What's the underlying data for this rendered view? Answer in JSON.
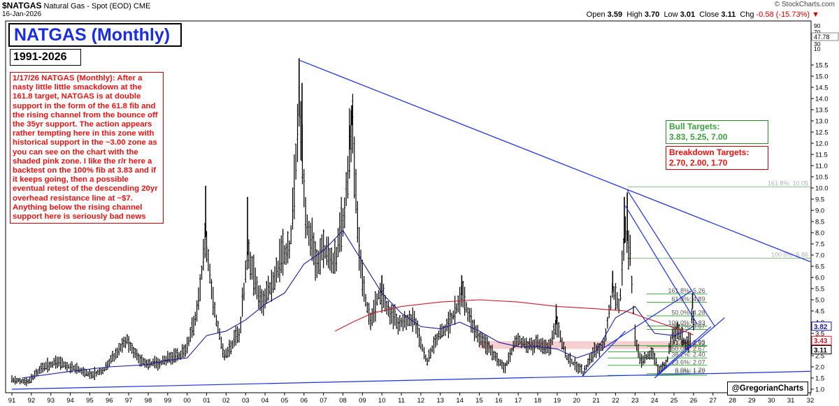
{
  "header": {
    "symbol": "$NATGAS",
    "description": "Natural Gas - Spot (EOD)",
    "exchange": "CME",
    "date": "16-Jan-2026",
    "brand": "© StockCharts.com",
    "open_label": "Open",
    "open": "3.59",
    "high_label": "High",
    "high": "3.70",
    "low_label": "Low",
    "low": "3.01",
    "close_label": "Close",
    "close": "3.11",
    "chg_label": "Chg",
    "chg": "-0.58 (-15.73%)"
  },
  "title": "NATGAS (Monthly)",
  "range": "1991-2026",
  "commentary": "1/17/26 NATGAS (Monthly): After a nasty little little smackdown at the 161.8 target, NATGAS is at double support in the form of the 61.8 fib and the rising channel from the bounce off the 35yr support. The action appears rather tempting here in this zone with historical support in the ~3.00 zone as you can see on the chart with the shaded pink zone. I like the r/r here a backtest on the 100% fib at 3.83 and if it keeps going, then a possible eventual retest of the descending 20yr overhead resistance line at ~$7. Anything below the rising channel support here is seriously bad news",
  "bull": {
    "title": "Bull Targets:",
    "values": "3.83, 5.25, 7.00"
  },
  "bear": {
    "title": "Breakdown Targets:",
    "values": "2.70, 2.00, 1.70"
  },
  "credit": "@GregorianCharts",
  "colors": {
    "price": "#000000",
    "ma_short": "#1a1aa0",
    "ma_long": "#cc1a2a",
    "trendline": "#1a2ee0",
    "fib_upper": "#88bb88",
    "fib_lower": "#44aa44",
    "support_zone": "#f4c8c8"
  },
  "chart_data": {
    "type": "bar",
    "title": "NATGAS (Monthly)",
    "xlabel": "",
    "ylabel": "",
    "xlim": [
      1991,
      2032
    ],
    "ylim": [
      1.0,
      16.0
    ],
    "x_tick_labels": [
      "91",
      "92",
      "93",
      "94",
      "95",
      "96",
      "97",
      "98",
      "99",
      "00",
      "01",
      "02",
      "03",
      "04",
      "05",
      "06",
      "07",
      "08",
      "09",
      "10",
      "11",
      "12",
      "13",
      "14",
      "15",
      "16",
      "17",
      "18",
      "19",
      "20",
      "21",
      "22",
      "23",
      "24",
      "25",
      "26",
      "27",
      "28",
      "29",
      "30",
      "31",
      "32"
    ],
    "y_ticks": [
      1.0,
      1.5,
      2.0,
      2.5,
      3.0,
      3.5,
      4.0,
      4.5,
      5.0,
      5.5,
      6.0,
      6.5,
      7.0,
      7.5,
      8.0,
      8.5,
      9.0,
      9.5,
      10.0,
      10.5,
      11.0,
      11.5,
      12.0,
      12.5,
      13.0,
      13.5,
      14.0,
      14.5,
      15.0,
      15.5
    ],
    "volume_axis_labels": [
      "90",
      "70",
      "50",
      "30",
      "10"
    ],
    "volume_value": "47.78",
    "last_value_labels": [
      {
        "value": "3.82",
        "color": "#1a1aa0"
      },
      {
        "value": "3.43",
        "color": "#cc1a2a"
      },
      {
        "value": "3.11",
        "color": "#000000"
      }
    ],
    "price_anchors": [
      [
        1991.0,
        1.4
      ],
      [
        1991.8,
        1.3
      ],
      [
        1992.5,
        1.9
      ],
      [
        1993.3,
        2.2
      ],
      [
        1994.2,
        1.9
      ],
      [
        1995.1,
        1.6
      ],
      [
        1995.8,
        1.9
      ],
      [
        1996.9,
        3.2
      ],
      [
        1997.6,
        2.2
      ],
      [
        1998.5,
        2.1
      ],
      [
        1999.3,
        2.4
      ],
      [
        1999.9,
        2.6
      ],
      [
        2000.5,
        4.3
      ],
      [
        2000.95,
        7.8
      ],
      [
        2001.4,
        4.5
      ],
      [
        2001.9,
        2.4
      ],
      [
        2002.7,
        3.5
      ],
      [
        2003.1,
        7.0
      ],
      [
        2003.8,
        4.7
      ],
      [
        2004.4,
        5.8
      ],
      [
        2004.9,
        6.8
      ],
      [
        2005.3,
        7.4
      ],
      [
        2005.75,
        13.2
      ],
      [
        2006.1,
        8.5
      ],
      [
        2006.6,
        6.5
      ],
      [
        2007.0,
        7.2
      ],
      [
        2007.6,
        6.6
      ],
      [
        2008.1,
        9.0
      ],
      [
        2008.45,
        12.8
      ],
      [
        2008.9,
        6.4
      ],
      [
        2009.4,
        3.8
      ],
      [
        2009.9,
        5.4
      ],
      [
        2010.4,
        4.3
      ],
      [
        2010.9,
        3.9
      ],
      [
        2011.6,
        4.2
      ],
      [
        2012.3,
        2.2
      ],
      [
        2012.9,
        3.4
      ],
      [
        2013.5,
        3.9
      ],
      [
        2014.1,
        5.2
      ],
      [
        2014.5,
        4.2
      ],
      [
        2014.9,
        3.3
      ],
      [
        2015.5,
        2.8
      ],
      [
        2015.9,
        2.3
      ],
      [
        2016.3,
        1.9
      ],
      [
        2016.9,
        3.2
      ],
      [
        2017.5,
        2.9
      ],
      [
        2018.0,
        3.0
      ],
      [
        2018.6,
        2.8
      ],
      [
        2018.95,
        3.9
      ],
      [
        2019.5,
        2.4
      ],
      [
        2020.0,
        2.0
      ],
      [
        2020.35,
        1.7
      ],
      [
        2020.9,
        2.7
      ],
      [
        2021.4,
        2.9
      ],
      [
        2021.85,
        5.4
      ],
      [
        2022.2,
        4.6
      ],
      [
        2022.5,
        8.1
      ],
      [
        2022.75,
        6.9
      ],
      [
        2023.0,
        3.3
      ],
      [
        2023.3,
        2.2
      ],
      [
        2023.9,
        2.7
      ],
      [
        2024.2,
        1.8
      ],
      [
        2024.6,
        2.1
      ],
      [
        2024.95,
        3.5
      ],
      [
        2025.3,
        3.4
      ],
      [
        2025.6,
        3.0
      ],
      [
        2025.85,
        3.1
      ],
      [
        2025.95,
        4.6
      ],
      [
        2026.05,
        3.11
      ]
    ],
    "price_spikes": [
      [
        2000.95,
        10.1
      ],
      [
        2003.1,
        9.6
      ],
      [
        2005.75,
        15.8
      ],
      [
        2005.9,
        14.7
      ],
      [
        2008.45,
        13.7
      ],
      [
        2008.35,
        12.8
      ],
      [
        2010.0,
        6.1
      ],
      [
        2014.1,
        6.1
      ],
      [
        2018.95,
        4.8
      ],
      [
        2021.85,
        6.3
      ],
      [
        2022.45,
        9.6
      ],
      [
        2022.6,
        9.8
      ],
      [
        2025.95,
        5.3
      ]
    ],
    "ma_short_series": [
      [
        1991.5,
        1.5
      ],
      [
        1994,
        1.8
      ],
      [
        1996,
        2.0
      ],
      [
        1998,
        2.1
      ],
      [
        1999,
        2.3
      ],
      [
        2000,
        2.4
      ],
      [
        2001,
        3.4
      ],
      [
        2002,
        3.6
      ],
      [
        2003,
        4.1
      ],
      [
        2004,
        4.8
      ],
      [
        2005,
        5.3
      ],
      [
        2006,
        6.6
      ],
      [
        2007,
        7.2
      ],
      [
        2008,
        8.1
      ],
      [
        2009,
        6.7
      ],
      [
        2010,
        5.3
      ],
      [
        2011,
        4.4
      ],
      [
        2012,
        3.8
      ],
      [
        2013,
        3.7
      ],
      [
        2014,
        4.0
      ],
      [
        2015,
        3.6
      ],
      [
        2016,
        3.1
      ],
      [
        2017,
        2.9
      ],
      [
        2018,
        2.9
      ],
      [
        2019,
        2.8
      ],
      [
        2020,
        2.4
      ],
      [
        2021,
        2.7
      ],
      [
        2022,
        4.2
      ],
      [
        2023,
        4.7
      ],
      [
        2024,
        3.5
      ],
      [
        2025,
        3.4
      ],
      [
        2025.6,
        3.6
      ],
      [
        2026.0,
        3.82
      ]
    ],
    "ma_long_series": [
      [
        2007.6,
        3.6
      ],
      [
        2008.5,
        4.0
      ],
      [
        2009.5,
        4.4
      ],
      [
        2011,
        4.7
      ],
      [
        2013,
        4.9
      ],
      [
        2015,
        5.0
      ],
      [
        2017,
        4.9
      ],
      [
        2019,
        4.7
      ],
      [
        2021,
        4.6
      ],
      [
        2022.5,
        4.5
      ],
      [
        2023.5,
        4.2
      ],
      [
        2024.5,
        3.9
      ],
      [
        2025.5,
        3.6
      ],
      [
        2026.0,
        3.43
      ]
    ],
    "support_zone": {
      "x_start": 2015.0,
      "x_end": 2026.2,
      "y_low": 2.8,
      "y_high": 3.15
    },
    "trendlines": [
      {
        "name": "descending-20yr-resistance",
        "x1": 2005.8,
        "y1": 15.7,
        "x2": 2032.0,
        "y2": 6.7
      },
      {
        "name": "35yr-support",
        "x1": 1991.0,
        "y1": 1.0,
        "x2": 2032.0,
        "y2": 1.8
      },
      {
        "name": "channel-lower-1",
        "x1": 2020.3,
        "y1": 1.6,
        "x2": 2022.5,
        "y2": 3.6
      },
      {
        "name": "channel-lower-2",
        "x1": 2024.0,
        "y1": 1.5,
        "x2": 2027.6,
        "y2": 4.2
      },
      {
        "name": "channel-upper",
        "x1": 2021.3,
        "y1": 2.8,
        "x2": 2025.9,
        "y2": 5.4
      },
      {
        "name": "wedge-upper",
        "x1": 2022.6,
        "y1": 9.9,
        "x2": 2027.1,
        "y2": 3.8
      },
      {
        "name": "wedge-lower",
        "x1": 2022.5,
        "y1": 9.2,
        "x2": 2026.2,
        "y2": 3.9
      },
      {
        "name": "inner-rising",
        "x1": 2024.2,
        "y1": 1.7,
        "x2": 2026.9,
        "y2": 3.8
      }
    ],
    "fib_levels_upper": [
      {
        "label": "161.8%: 10.05",
        "value": 10.05,
        "x_start": 2022.6
      },
      {
        "label": "100.0%: 6.86",
        "value": 6.86,
        "x_start": 2022.6
      }
    ],
    "fib_levels_lower": [
      {
        "label": "161.8%: 5.26",
        "value": 5.26,
        "x_start": 2023.6
      },
      {
        "label": "61.8%: 4.89",
        "value": 4.89,
        "x_start": 2023.6
      },
      {
        "label": "50.0%: 4.28",
        "value": 4.28,
        "x_start": 2023.6
      },
      {
        "label": "100.0%: 3.83",
        "value": 3.83,
        "x_start": 2023.6
      },
      {
        "label": "38.2%: 3.67",
        "value": 3.67,
        "x_start": 2023.6
      },
      {
        "label": "23.6%: 2.92",
        "value": 2.92,
        "x_start": 2023.6
      },
      {
        "label": "61.8%: 2.95",
        "value": 2.95,
        "x_start": 2021.6
      },
      {
        "label": "50.0%: 2.67",
        "value": 2.67,
        "x_start": 2021.6
      },
      {
        "label": "38.2%: 2.40",
        "value": 2.4,
        "x_start": 2021.6
      },
      {
        "label": "23.6%: 2.07",
        "value": 2.07,
        "x_start": 2021.6
      },
      {
        "label": "0.0%: 1.70",
        "value": 1.7,
        "x_start": 2023.6
      },
      {
        "label": "0.0%: 1.62",
        "value": 1.62,
        "x_start": 2021.6
      }
    ]
  }
}
